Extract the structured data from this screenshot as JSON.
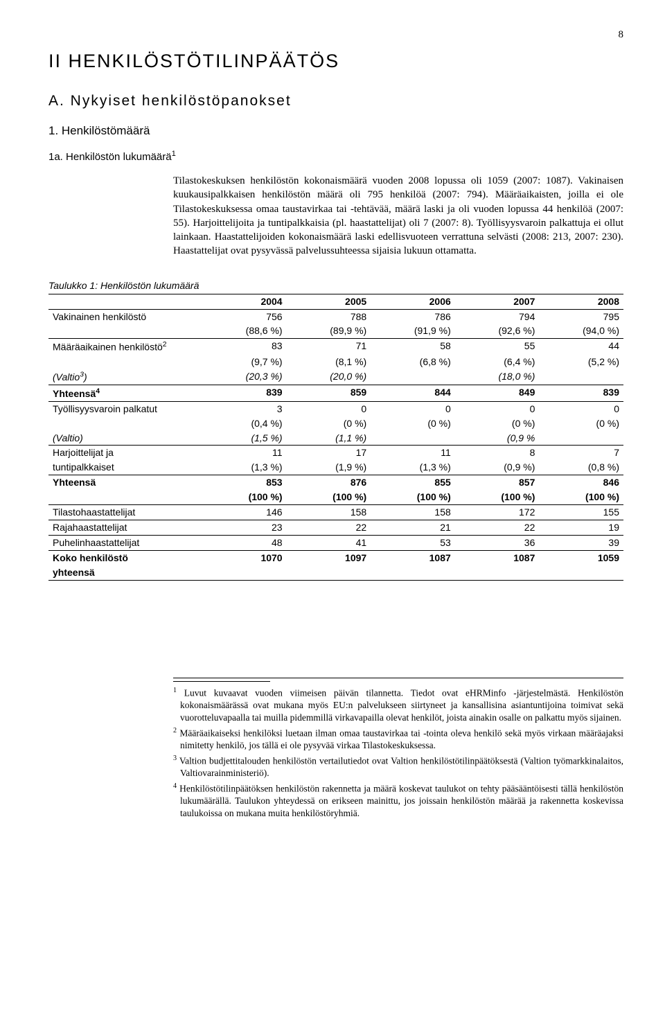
{
  "page_number": "8",
  "title": "II HENKILÖSTÖTILINPÄÄTÖS",
  "section_a": "A. Nykyiset henkilöstöpanokset",
  "sub1": "1. Henkilöstömäärä",
  "sub1a": "1a. Henkilöstön lukumäärä",
  "sup1": "1",
  "body": "Tilastokeskuksen henkilöstön kokonaismäärä vuoden 2008 lopussa oli 1059 (2007: 1087). Vakinaisen kuukausipalkkaisen henkilöstön määrä oli 795 henkilöä (2007: 794). Määräaikaisten, joilla ei ole Tilastokeskuksessa omaa taustavirkaa tai -tehtävää, määrä laski ja oli vuoden lopussa 44 henkilöä (2007: 55). Harjoittelijoita ja tuntipalkkaisia (pl. haastattelijat) oli 7 (2007: 8). Työllisyysvaroin palkattuja ei ollut lainkaan. Haastattelijoiden kokonaismäärä laski edellisvuoteen verrattuna selvästi (2008: 213, 2007: 230). Haastattelijat ovat pysyvässä palvelussuhteessa sijaisia lukuun ottamatta.",
  "table": {
    "caption": "Taulukko 1: Henkilöstön lukumäärä",
    "years": [
      "2004",
      "2005",
      "2006",
      "2007",
      "2008"
    ],
    "rows": [
      {
        "label": "Vakinainen henkilöstö",
        "v": [
          "756",
          "788",
          "786",
          "794",
          "795"
        ],
        "cls": ""
      },
      {
        "label": "",
        "v": [
          "(88,6 %)",
          "(89,9 %)",
          "(91,9 %)",
          "(92,6 %)",
          "(94,0 %)"
        ],
        "cls": "thin-border-bottom"
      },
      {
        "label_html": "Määräaikainen henkilöstö<sup>2</sup>",
        "v": [
          "83",
          "71",
          "58",
          "55",
          "44"
        ],
        "cls": ""
      },
      {
        "label": "",
        "v": [
          "(9,7 %)",
          "(8,1 %)",
          "(6,8 %)",
          "(6,4 %)",
          "(5,2 %)"
        ],
        "cls": ""
      },
      {
        "label_html": "<i>(Valtio<sup>3</sup>)</i>",
        "v": [
          "(20,3 %)",
          "(20,0 %)",
          "",
          "(18,0 %)",
          ""
        ],
        "cls": "italic thin-border-bottom"
      },
      {
        "label_html": "<b>Yhteensä<sup>4</sup></b>",
        "v": [
          "839",
          "859",
          "844",
          "849",
          "839"
        ],
        "cls": "bold thin-border-bottom"
      },
      {
        "label": "Työllisyysvaroin palkatut",
        "v": [
          "3",
          "0",
          "0",
          "0",
          "0"
        ],
        "cls": ""
      },
      {
        "label": "",
        "v": [
          "(0,4 %)",
          "(0 %)",
          "(0 %)",
          "(0 %)",
          "(0 %)"
        ],
        "cls": ""
      },
      {
        "label_html": "<i>(Valtio)</i>",
        "v": [
          "(1,5 %)",
          "(1,1 %)",
          "",
          "(0,9 %",
          ""
        ],
        "cls": "italic thin-border-bottom"
      },
      {
        "label": "Harjoittelijat ja",
        "v": [
          "11",
          "17",
          "11",
          "8",
          "7"
        ],
        "cls": ""
      },
      {
        "label": "tuntipalkkaiset",
        "v": [
          "(1,3 %)",
          "(1,9 %)",
          "(1,3 %)",
          "(0,9 %)",
          "(0,8 %)"
        ],
        "cls": "thin-border-bottom"
      },
      {
        "label": "Yhteensä",
        "v": [
          "853",
          "876",
          "855",
          "857",
          "846"
        ],
        "cls": "bold"
      },
      {
        "label": "",
        "v": [
          "(100 %)",
          "(100 %)",
          "(100 %)",
          "(100 %)",
          "(100 %)"
        ],
        "cls": "bold thin-border-bottom"
      },
      {
        "label": "Tilastohaastattelijat",
        "v": [
          "146",
          "158",
          "158",
          "172",
          "155"
        ],
        "cls": "thin-border-bottom"
      },
      {
        "label": "Rajahaastattelijat",
        "v": [
          "23",
          "22",
          "21",
          "22",
          "19"
        ],
        "cls": "thin-border-bottom"
      },
      {
        "label": "Puhelinhaastattelijat",
        "v": [
          "48",
          "41",
          "53",
          "36",
          "39"
        ],
        "cls": "thin-border-bottom"
      },
      {
        "label": "Koko henkilöstö",
        "v": [
          "1070",
          "1097",
          "1087",
          "1087",
          "1059"
        ],
        "cls": "bold"
      },
      {
        "label": "yhteensä",
        "v": [
          "",
          "",
          "",
          "",
          ""
        ],
        "cls": "bold last-row"
      }
    ]
  },
  "footnotes": {
    "f1_a": "Luvut kuvaavat vuoden viimeisen päivän tilannetta. Tiedot ovat eHRMinfo -järjestelmästä. Henkilöstön kokonaismäärässä ovat mukana myös EU:n palvelukseen siirtyneet ja kansallisina asiantuntijoina toimivat sekä vuorotteluvapaalla tai muilla pidemmillä virkavapailla olevat henkilöt, joista ainakin osalle on palkattu myös sijainen.",
    "f2_a": "Määräaikaiseksi henkilöksi luetaan ilman omaa taustavirkaa tai -tointa oleva henkilö sekä myös virkaan määräajaksi nimitetty henkilö, jos tällä ei ole pysyvää virkaa Tilastokeskuksessa.",
    "f3_a": "Valtion budjettitalouden henkilöstön vertailutiedot ovat Valtion henkilöstötilinpäätöksestä (Valtion työmarkkinalaitos, Valtiovarainministeriö).",
    "f4_a": "Henkilöstötilinpäätöksen henkilöstön rakennetta ja määrä koskevat taulukot on tehty pääsääntöisesti tällä henkilöstön lukumäärällä. Taulukon yhteydessä on erikseen mainittu, jos joissain henkilöstön määrää ja rakennetta koskevissa taulukoissa on mukana muita henkilöstöryhmiä."
  }
}
